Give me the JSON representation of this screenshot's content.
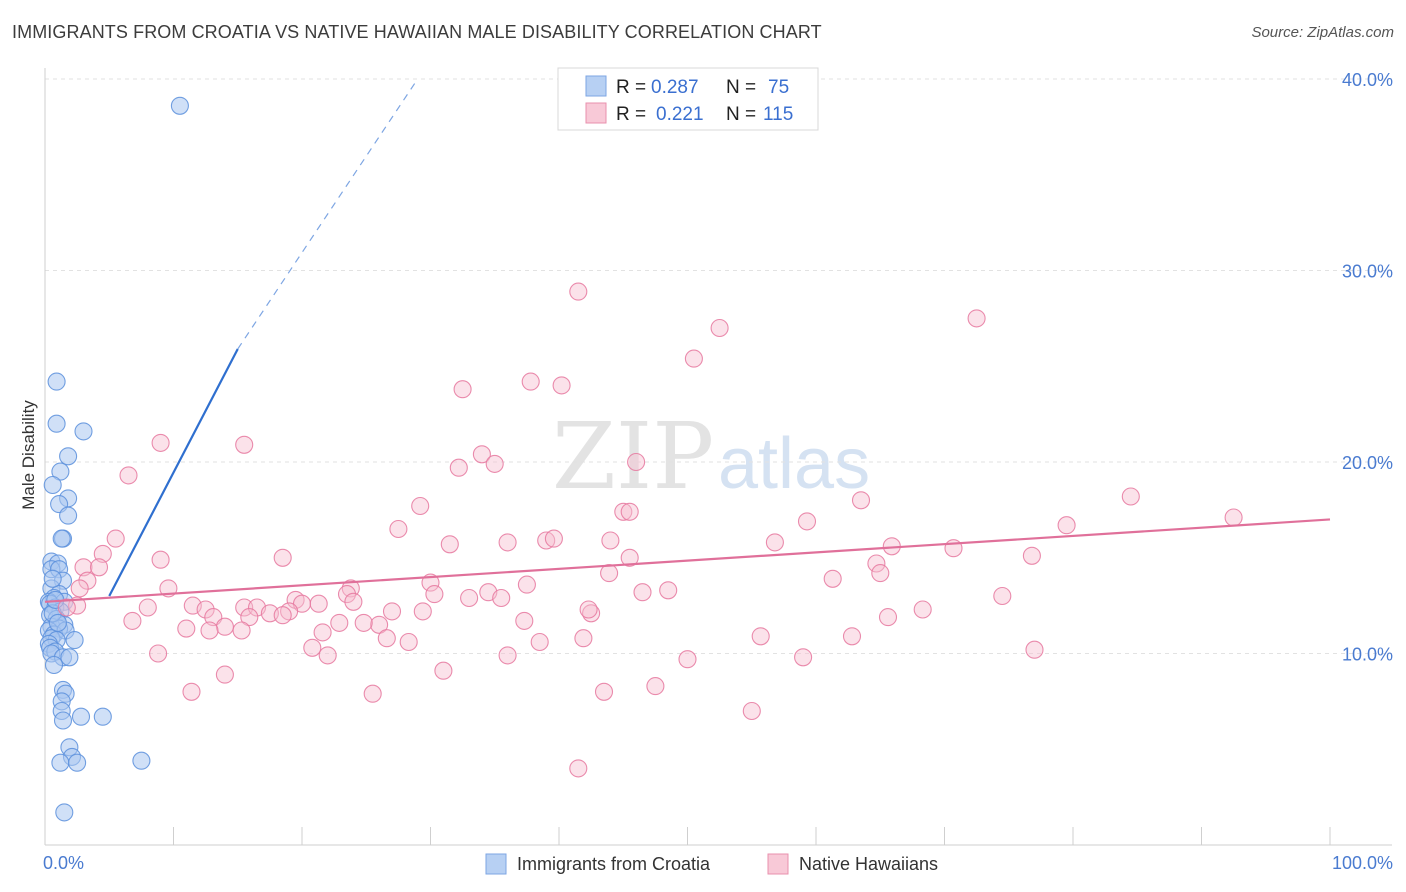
{
  "header": {
    "title": "IMMIGRANTS FROM CROATIA VS NATIVE HAWAIIAN MALE DISABILITY CORRELATION CHART",
    "source": "Source: ZipAtlas.com"
  },
  "watermark": {
    "zip": "ZIP",
    "atlas": "atlas"
  },
  "chart_data": {
    "type": "scatter",
    "title": "IMMIGRANTS FROM CROATIA VS NATIVE HAWAIIAN MALE DISABILITY CORRELATION CHART",
    "xlabel": "",
    "ylabel": "Male Disability",
    "xlim": [
      0,
      100
    ],
    "ylim": [
      0,
      41.5
    ],
    "y_ticks": [
      10,
      20,
      30,
      40
    ],
    "y_tick_labels": [
      "10.0%",
      "20.0%",
      "30.0%",
      "40.0%"
    ],
    "x_tick_labels": [
      "0.0%",
      "100.0%"
    ],
    "grid": true,
    "legend_position": "top-center",
    "legend": [
      {
        "name": "Immigrants from Croatia",
        "r_label": "R =",
        "r_value": "0.287",
        "n_label": "N =",
        "n_value": "75"
      },
      {
        "name": "Native Hawaiians",
        "r_label": "R =",
        "r_value": "0.221",
        "n_label": "N =",
        "n_value": "115"
      }
    ],
    "series": [
      {
        "name": "Immigrants from Croatia",
        "color": "#5b8fdc",
        "fill": "#a9c6f0",
        "trend": {
          "x0": 5.0,
          "y0": 13.0,
          "x1": 15.0,
          "y1": 25.9,
          "dash_to_x": 29.0,
          "dash_to_y": 40.0
        },
        "points": [
          [
            10.5,
            38.6
          ],
          [
            0.9,
            24.2
          ],
          [
            3.0,
            21.6
          ],
          [
            0.9,
            22.0
          ],
          [
            1.8,
            20.3
          ],
          [
            1.2,
            19.5
          ],
          [
            0.6,
            18.8
          ],
          [
            1.8,
            18.1
          ],
          [
            1.1,
            17.8
          ],
          [
            1.8,
            17.2
          ],
          [
            1.4,
            16.0
          ],
          [
            1.3,
            16.0
          ],
          [
            0.5,
            14.8
          ],
          [
            1.0,
            14.7
          ],
          [
            0.5,
            14.4
          ],
          [
            1.1,
            14.4
          ],
          [
            1.4,
            13.8
          ],
          [
            0.5,
            13.4
          ],
          [
            1.1,
            13.1
          ],
          [
            0.7,
            12.9
          ],
          [
            0.3,
            12.7
          ],
          [
            0.4,
            12.6
          ],
          [
            1.5,
            12.7
          ],
          [
            0.8,
            12.4
          ],
          [
            1.2,
            12.2
          ],
          [
            0.4,
            12.0
          ],
          [
            0.9,
            11.8
          ],
          [
            1.5,
            11.5
          ],
          [
            0.5,
            11.4
          ],
          [
            1.1,
            11.3
          ],
          [
            0.3,
            11.2
          ],
          [
            0.7,
            11.0
          ],
          [
            1.6,
            11.2
          ],
          [
            0.5,
            10.8
          ],
          [
            0.9,
            10.7
          ],
          [
            0.3,
            10.5
          ],
          [
            2.3,
            10.7
          ],
          [
            0.4,
            10.3
          ],
          [
            0.8,
            10.1
          ],
          [
            0.5,
            10.0
          ],
          [
            1.4,
            9.8
          ],
          [
            1.9,
            9.8
          ],
          [
            0.7,
            9.4
          ],
          [
            1.4,
            8.1
          ],
          [
            1.6,
            7.9
          ],
          [
            1.3,
            7.5
          ],
          [
            1.3,
            7.0
          ],
          [
            2.8,
            6.7
          ],
          [
            4.5,
            6.7
          ],
          [
            1.4,
            6.5
          ],
          [
            1.9,
            5.1
          ],
          [
            2.1,
            4.6
          ],
          [
            1.2,
            4.3
          ],
          [
            2.5,
            4.3
          ],
          [
            7.5,
            4.4
          ],
          [
            1.5,
            1.7
          ],
          [
            0.6,
            12.1
          ],
          [
            1.0,
            11.6
          ],
          [
            0.6,
            13.9
          ],
          [
            0.8,
            12.8
          ]
        ]
      },
      {
        "name": "Native Hawaiians",
        "color": "#e6789f",
        "fill": "#f6bfd0",
        "trend": {
          "x0": 0,
          "y0": 12.7,
          "x1": 100,
          "y1": 17.0
        },
        "points": [
          [
            41.5,
            28.9
          ],
          [
            72.5,
            27.5
          ],
          [
            52.5,
            27.0
          ],
          [
            50.5,
            25.4
          ],
          [
            37.8,
            24.2
          ],
          [
            40.2,
            24.0
          ],
          [
            32.5,
            23.8
          ],
          [
            9.0,
            21.0
          ],
          [
            15.5,
            20.9
          ],
          [
            34.0,
            20.4
          ],
          [
            46.0,
            20.0
          ],
          [
            32.2,
            19.7
          ],
          [
            35.0,
            19.9
          ],
          [
            6.5,
            19.3
          ],
          [
            84.5,
            18.2
          ],
          [
            63.5,
            18.0
          ],
          [
            29.2,
            17.7
          ],
          [
            92.5,
            17.1
          ],
          [
            45.0,
            17.4
          ],
          [
            45.5,
            17.4
          ],
          [
            59.3,
            16.9
          ],
          [
            79.5,
            16.7
          ],
          [
            27.5,
            16.5
          ],
          [
            5.5,
            16.0
          ],
          [
            39.0,
            15.9
          ],
          [
            39.6,
            16.0
          ],
          [
            44.0,
            15.9
          ],
          [
            31.5,
            15.7
          ],
          [
            36.0,
            15.8
          ],
          [
            56.8,
            15.8
          ],
          [
            65.9,
            15.6
          ],
          [
            70.7,
            15.5
          ],
          [
            4.5,
            15.2
          ],
          [
            18.5,
            15.0
          ],
          [
            76.8,
            15.1
          ],
          [
            9.0,
            14.9
          ],
          [
            64.7,
            14.7
          ],
          [
            3.0,
            14.5
          ],
          [
            4.2,
            14.5
          ],
          [
            43.9,
            14.2
          ],
          [
            65.0,
            14.2
          ],
          [
            61.3,
            13.9
          ],
          [
            3.3,
            13.8
          ],
          [
            30.0,
            13.7
          ],
          [
            37.5,
            13.6
          ],
          [
            2.7,
            13.4
          ],
          [
            9.6,
            13.4
          ],
          [
            23.8,
            13.4
          ],
          [
            34.5,
            13.2
          ],
          [
            48.5,
            13.3
          ],
          [
            46.5,
            13.2
          ],
          [
            23.5,
            13.1
          ],
          [
            30.3,
            13.1
          ],
          [
            35.5,
            12.9
          ],
          [
            19.5,
            12.8
          ],
          [
            20.0,
            12.6
          ],
          [
            24.0,
            12.7
          ],
          [
            15.5,
            12.4
          ],
          [
            21.3,
            12.6
          ],
          [
            8.0,
            12.4
          ],
          [
            11.5,
            12.5
          ],
          [
            16.5,
            12.4
          ],
          [
            2.5,
            12.5
          ],
          [
            1.7,
            12.4
          ],
          [
            12.5,
            12.3
          ],
          [
            19.0,
            12.2
          ],
          [
            17.5,
            12.1
          ],
          [
            27.0,
            12.2
          ],
          [
            42.5,
            12.1
          ],
          [
            42.3,
            12.3
          ],
          [
            29.4,
            12.2
          ],
          [
            68.3,
            12.3
          ],
          [
            74.5,
            13.0
          ],
          [
            13.1,
            11.9
          ],
          [
            6.8,
            11.7
          ],
          [
            15.9,
            11.9
          ],
          [
            22.9,
            11.6
          ],
          [
            26.0,
            11.5
          ],
          [
            37.3,
            11.7
          ],
          [
            24.8,
            11.6
          ],
          [
            65.6,
            11.9
          ],
          [
            14.0,
            11.4
          ],
          [
            11.0,
            11.3
          ],
          [
            15.3,
            11.2
          ],
          [
            12.8,
            11.2
          ],
          [
            21.6,
            11.1
          ],
          [
            26.6,
            10.8
          ],
          [
            41.9,
            10.8
          ],
          [
            55.7,
            10.9
          ],
          [
            62.8,
            10.9
          ],
          [
            8.8,
            10.0
          ],
          [
            20.8,
            10.3
          ],
          [
            28.3,
            10.6
          ],
          [
            22.0,
            9.9
          ],
          [
            36.0,
            9.9
          ],
          [
            59.0,
            9.8
          ],
          [
            77.0,
            10.2
          ],
          [
            31.0,
            9.1
          ],
          [
            14.0,
            8.9
          ],
          [
            47.5,
            8.3
          ],
          [
            11.4,
            8.0
          ],
          [
            25.5,
            7.9
          ],
          [
            43.5,
            8.0
          ],
          [
            55.0,
            7.0
          ],
          [
            41.5,
            4.0
          ],
          [
            50.0,
            9.7
          ],
          [
            18.5,
            12.0
          ],
          [
            38.5,
            10.6
          ],
          [
            33.0,
            12.9
          ],
          [
            45.5,
            15.0
          ]
        ]
      }
    ]
  },
  "bottom_legend": [
    {
      "label": "Immigrants from Croatia"
    },
    {
      "label": "Native Hawaiians"
    }
  ]
}
